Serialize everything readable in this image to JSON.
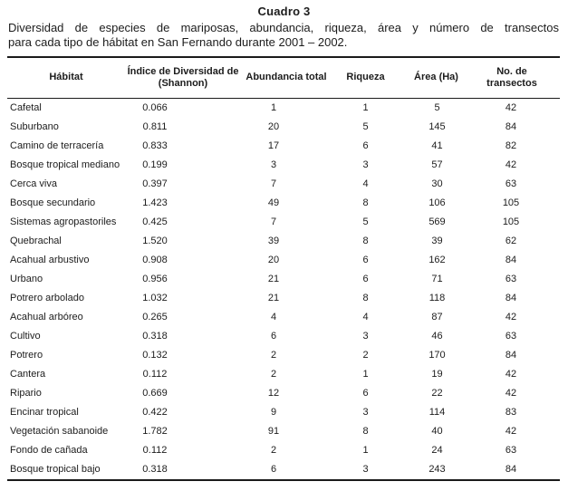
{
  "title": "Cuadro 3",
  "caption": {
    "line1": "Diversidad de especies de mariposas, abundancia, riqueza, área y número de transectos",
    "line2": "para cada tipo de hábitat en San Fernando durante 2001 – 2002."
  },
  "colors": {
    "background": "#ffffff",
    "text": "#1c1c1c",
    "rule": "#1a1a1a"
  },
  "table": {
    "columns": [
      {
        "label": "Hábitat"
      },
      {
        "label": "Índice de Diversidad de (Shannon)",
        "line1": "Índice de Diversidad de",
        "line2": "(Shannon)"
      },
      {
        "label": "Abundancia total"
      },
      {
        "label": "Riqueza"
      },
      {
        "label": "Área (Ha)"
      },
      {
        "label": "No. de transectos"
      }
    ],
    "rows": [
      [
        "Cafetal",
        "0.066",
        "1",
        "1",
        "5",
        "42"
      ],
      [
        "Suburbano",
        "0.811",
        "20",
        "5",
        "145",
        "84"
      ],
      [
        "Camino de terracería",
        "0.833",
        "17",
        "6",
        "41",
        "82"
      ],
      [
        "Bosque tropical mediano",
        "0.199",
        "3",
        "3",
        "57",
        "42"
      ],
      [
        "Cerca viva",
        "0.397",
        "7",
        "4",
        "30",
        "63"
      ],
      [
        "Bosque secundario",
        "1.423",
        "49",
        "8",
        "106",
        "105"
      ],
      [
        "Sistemas agropastoriles",
        "0.425",
        "7",
        "5",
        "569",
        "105"
      ],
      [
        "Quebrachal",
        "1.520",
        "39",
        "8",
        "39",
        "62"
      ],
      [
        "Acahual arbustivo",
        "0.908",
        "20",
        "6",
        "162",
        "84"
      ],
      [
        "Urbano",
        "0.956",
        "21",
        "6",
        "71",
        "63"
      ],
      [
        "Potrero arbolado",
        "1.032",
        "21",
        "8",
        "118",
        "84"
      ],
      [
        "Acahual arbóreo",
        "0.265",
        "4",
        "4",
        "87",
        "42"
      ],
      [
        "Cultivo",
        "0.318",
        "6",
        "3",
        "46",
        "63"
      ],
      [
        "Potrero",
        "0.132",
        "2",
        "2",
        "170",
        "84"
      ],
      [
        "Cantera",
        "0.112",
        "2",
        "1",
        "19",
        "42"
      ],
      [
        "Ripario",
        "0.669",
        "12",
        "6",
        "22",
        "42"
      ],
      [
        "Encinar tropical",
        "0.422",
        "9",
        "3",
        "114",
        "83"
      ],
      [
        "Vegetación sabanoide",
        "1.782",
        "91",
        "8",
        "40",
        "42"
      ],
      [
        "Fondo de cañada",
        "0.112",
        "2",
        "1",
        "24",
        "63"
      ],
      [
        "Bosque tropical bajo",
        "0.318",
        "6",
        "3",
        "243",
        "84"
      ]
    ]
  }
}
